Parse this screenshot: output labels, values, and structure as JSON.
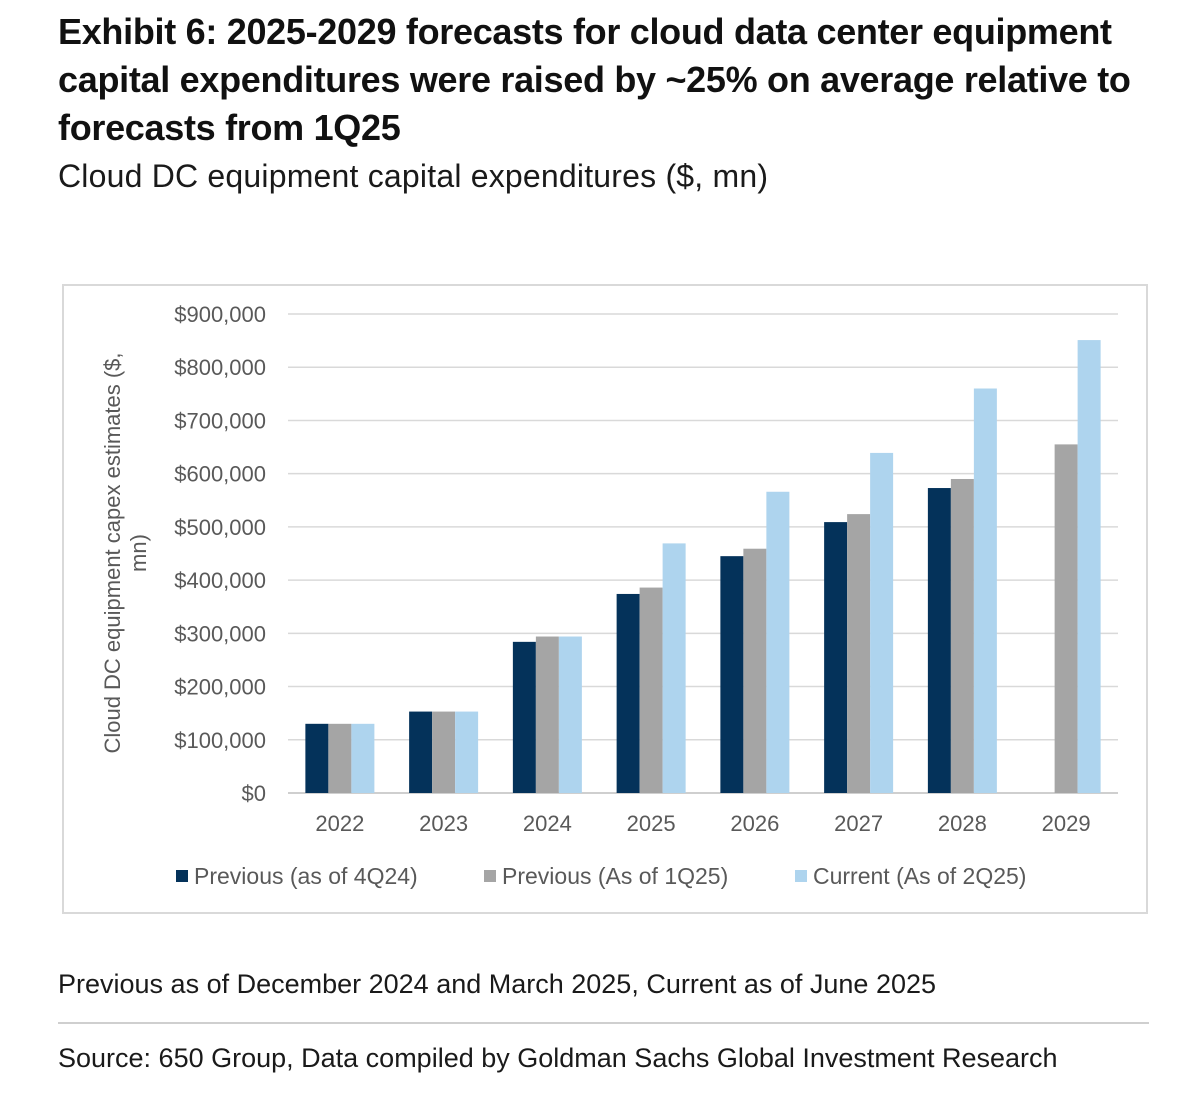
{
  "header": {
    "title": "Exhibit 6: 2025-2029 forecasts for cloud data center equipment capital expenditures were raised by ~25% on average relative to forecasts from 1Q25",
    "subtitle": "Cloud DC equipment capital expenditures ($, mn)"
  },
  "footer": {
    "note": "Previous as of December 2024 and March 2025, Current as of June 2025",
    "source": "Source: 650 Group, Data compiled by Goldman Sachs Global Investment Research"
  },
  "chart_data": {
    "type": "bar",
    "title": "",
    "xlabel": "",
    "ylabel": "Cloud DC equipment capex estimates ($, mn)",
    "ylim": [
      0,
      900000
    ],
    "yticks": [
      0,
      100000,
      200000,
      300000,
      400000,
      500000,
      600000,
      700000,
      800000,
      900000
    ],
    "ytick_labels": [
      "$0",
      "$100,000",
      "$200,000",
      "$300,000",
      "$400,000",
      "$500,000",
      "$600,000",
      "$700,000",
      "$800,000",
      "$900,000"
    ],
    "grid": true,
    "legend_position": "bottom",
    "categories": [
      "2022",
      "2023",
      "2024",
      "2025",
      "2026",
      "2027",
      "2028",
      "2029"
    ],
    "series": [
      {
        "name": "Previous (as of 4Q24)",
        "color": "#04325a",
        "values": [
          130000,
          153000,
          284000,
          374000,
          445000,
          509000,
          573000,
          null
        ]
      },
      {
        "name": "Previous (As of 1Q25)",
        "color": "#a5a5a5",
        "values": [
          130000,
          153000,
          294000,
          386000,
          459000,
          524000,
          590000,
          655000
        ]
      },
      {
        "name": "Current (As of 2Q25)",
        "color": "#aed4ee",
        "values": [
          130000,
          153000,
          294000,
          469000,
          566000,
          639000,
          760000,
          851000
        ]
      }
    ]
  }
}
